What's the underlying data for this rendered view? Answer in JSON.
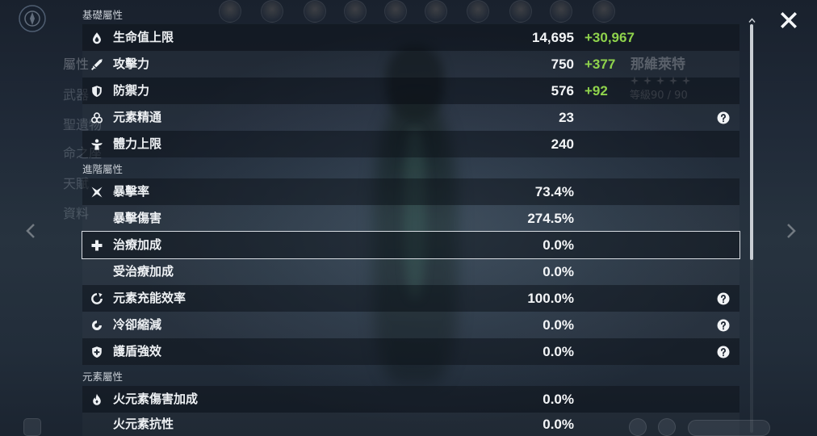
{
  "background": {
    "character_name": "那維萊特",
    "character_level": "等級90 / 90",
    "rarity_stars": 5,
    "side_menu": [
      "屬性",
      "武器",
      "聖遺物",
      "命之座",
      "天賦",
      "資料"
    ]
  },
  "sections": {
    "base": {
      "title": "基礎屬性",
      "rows": [
        {
          "icon": "hp-droplet-icon",
          "label": "生命值上限",
          "value": "14,695",
          "bonus": "+30,967"
        },
        {
          "icon": "atk-sword-icon",
          "label": "攻擊力",
          "value": "750",
          "bonus": "+377"
        },
        {
          "icon": "def-shield-icon",
          "label": "防禦力",
          "value": "576",
          "bonus": "+92"
        },
        {
          "icon": "elemental-mastery-icon",
          "label": "元素精通",
          "value": "23",
          "help": true
        },
        {
          "icon": "stamina-icon",
          "label": "體力上限",
          "value": "240"
        }
      ]
    },
    "advanced": {
      "title": "進階屬性",
      "rows": [
        {
          "icon": "crit-rate-icon",
          "label": "暴擊率",
          "value": "73.4%"
        },
        {
          "label": "暴擊傷害",
          "value": "274.5%"
        },
        {
          "icon": "healing-bonus-icon",
          "label": "治療加成",
          "value": "0.0%",
          "selected": true
        },
        {
          "label": "受治療加成",
          "value": "0.0%"
        },
        {
          "icon": "energy-recharge-icon",
          "label": "元素充能效率",
          "value": "100.0%",
          "help": true
        },
        {
          "icon": "cd-reduction-icon",
          "label": "冷卻縮減",
          "value": "0.0%",
          "help": true
        },
        {
          "icon": "shield-strength-icon",
          "label": "護盾強效",
          "value": "0.0%",
          "help": true
        }
      ]
    },
    "elemental": {
      "title": "元素屬性",
      "rows": [
        {
          "icon": "pyro-icon",
          "label": "火元素傷害加成",
          "value": "0.0%"
        },
        {
          "label": "火元素抗性",
          "value": "0.0%"
        }
      ]
    }
  },
  "navigation": {
    "close_icon": "close-icon",
    "prev_icon": "chevron-left-icon",
    "next_icon": "chevron-right-icon"
  },
  "colors": {
    "background": "#222d3a",
    "stat_text": "#eef1f4",
    "bonus_text": "#8fd34c",
    "section_title": "#c9cfd6",
    "selection_border": "#d7dce2"
  }
}
